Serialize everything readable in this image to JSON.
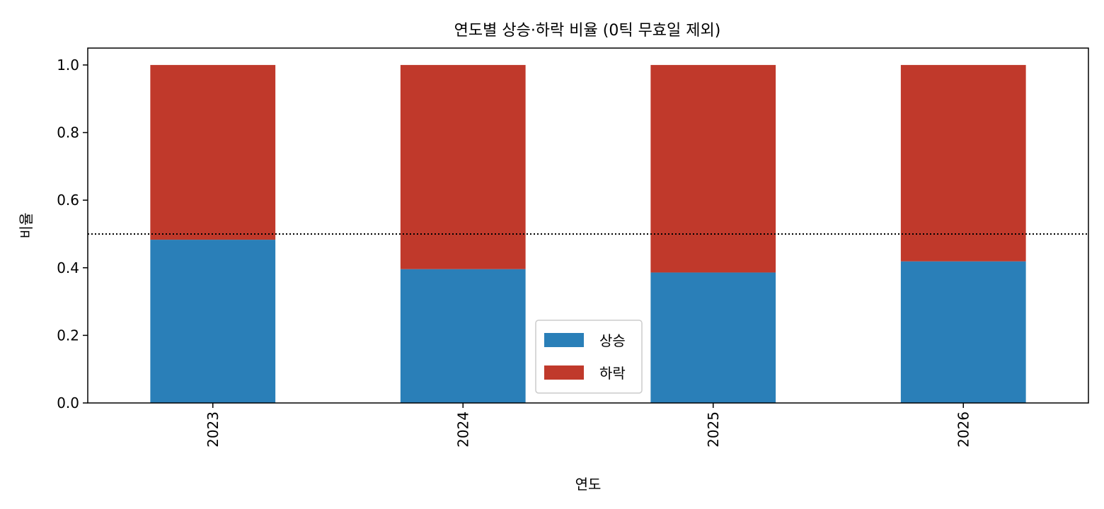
{
  "chart_data": {
    "type": "bar",
    "stacked": true,
    "title": "연도별 상승·하락 비율 (0틱 무효일 제외)",
    "xlabel": "연도",
    "ylabel": "비율",
    "categories": [
      "2023",
      "2024",
      "2025",
      "2026"
    ],
    "series": [
      {
        "name": "상승",
        "values": [
          0.483,
          0.396,
          0.386,
          0.419
        ],
        "color": "#2a7fb8"
      },
      {
        "name": "하락",
        "values": [
          0.517,
          0.604,
          0.614,
          0.581
        ],
        "color": "#c0392b"
      }
    ],
    "ylim": [
      0,
      1.05
    ],
    "yticks": [
      "0.0",
      "0.2",
      "0.4",
      "0.6",
      "0.8",
      "1.0"
    ],
    "reference_line": {
      "y": 0.5,
      "style": "dotted",
      "color": "#000000"
    },
    "legend": {
      "position": "bottom-center"
    },
    "grid": false
  }
}
